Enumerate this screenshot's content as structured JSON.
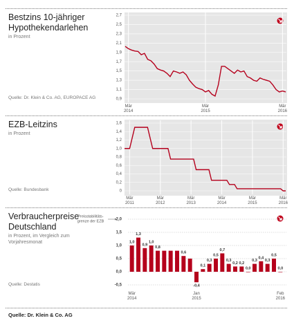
{
  "footer": "Quelle: Dr. Klein & Co. AG",
  "chart_data": [
    {
      "type": "line",
      "title": "Bestzins 10-jähriger Hypothekendarlehen",
      "subtitle": "in Prozent",
      "source": "Quelle: Dr. Klein & Co. AG, EUROPACE AG",
      "categories": [
        null,
        "Mär 2014",
        null,
        null,
        null,
        null,
        null,
        null,
        null,
        null,
        null,
        null,
        null,
        null,
        null,
        null,
        null,
        null,
        null,
        null,
        null,
        null,
        null,
        null,
        null,
        "Mär 2015",
        null,
        null,
        null,
        null,
        null,
        null,
        null,
        null,
        null,
        null,
        null,
        null,
        null,
        null,
        null,
        null,
        null,
        null,
        null,
        null,
        null,
        null,
        null,
        "Mär 2016",
        null
      ],
      "values": [
        2.03,
        1.98,
        1.95,
        1.93,
        1.92,
        1.85,
        1.88,
        1.75,
        1.72,
        1.65,
        1.55,
        1.52,
        1.5,
        1.45,
        1.38,
        1.5,
        1.48,
        1.45,
        1.48,
        1.42,
        1.3,
        1.22,
        1.15,
        1.12,
        1.1,
        1.05,
        1.08,
        1.0,
        0.96,
        1.2,
        1.6,
        1.6,
        1.55,
        1.5,
        1.45,
        1.52,
        1.48,
        1.5,
        1.38,
        1.35,
        1.3,
        1.28,
        1.35,
        1.32,
        1.3,
        1.28,
        1.2,
        1.1,
        1.05,
        1.07,
        1.05
      ],
      "color": "#b5001c",
      "ylim": [
        0.9,
        2.7
      ],
      "yticks": [
        {
          "value": 0.9,
          "label": "0,9"
        },
        {
          "value": 1.1,
          "label": "1,1"
        },
        {
          "value": 1.3,
          "label": "1,3"
        },
        {
          "value": 1.5,
          "label": "1,5"
        },
        {
          "value": 1.7,
          "label": "1,7"
        },
        {
          "value": 1.9,
          "label": "1,9"
        },
        {
          "value": 2.1,
          "label": "2,1"
        },
        {
          "value": 2.3,
          "label": "2,3"
        },
        {
          "value": 2.5,
          "label": "2,5"
        },
        {
          "value": 2.7,
          "label": "2,7"
        }
      ]
    },
    {
      "type": "line",
      "title": "EZB-Leitzins",
      "subtitle": "in Prozent",
      "source": "Quelle: Bundesbank",
      "categories": [
        null,
        null,
        "Mär 2011",
        null,
        null,
        null,
        null,
        null,
        null,
        null,
        null,
        null,
        null,
        null,
        "Mär 2012",
        null,
        null,
        null,
        null,
        null,
        null,
        null,
        null,
        null,
        null,
        null,
        "Mär 2013",
        null,
        null,
        null,
        null,
        null,
        null,
        null,
        null,
        null,
        null,
        null,
        "Mär 2014",
        null,
        null,
        null,
        null,
        null,
        null,
        null,
        null,
        null,
        null,
        null,
        "Mär 2015",
        null,
        null,
        null,
        null,
        null,
        null,
        null,
        null,
        null,
        null,
        null,
        "Mär 2016",
        null
      ],
      "values": [
        1.0,
        1.0,
        1.0,
        1.25,
        1.5,
        1.5,
        1.5,
        1.5,
        1.5,
        1.5,
        1.25,
        1.0,
        1.0,
        1.0,
        1.0,
        1.0,
        1.0,
        1.0,
        0.75,
        0.75,
        0.75,
        0.75,
        0.75,
        0.75,
        0.75,
        0.75,
        0.75,
        0.75,
        0.5,
        0.5,
        0.5,
        0.5,
        0.5,
        0.5,
        0.25,
        0.25,
        0.25,
        0.25,
        0.25,
        0.25,
        0.25,
        0.15,
        0.15,
        0.15,
        0.05,
        0.05,
        0.05,
        0.05,
        0.05,
        0.05,
        0.05,
        0.05,
        0.05,
        0.05,
        0.05,
        0.05,
        0.05,
        0.05,
        0.05,
        0.05,
        0.05,
        0.05,
        0.0,
        0.0
      ],
      "color": "#b5001c",
      "ylim": [
        0,
        1.6
      ],
      "yticks": [
        0,
        {
          "value": 0.2,
          "label": "0,2"
        },
        {
          "value": 0.4,
          "label": "0,4"
        },
        {
          "value": 0.6,
          "label": "0,6"
        },
        {
          "value": 0.8,
          "label": "0,8"
        },
        {
          "value": 1.0,
          "label": "1,0"
        },
        {
          "value": 1.2,
          "label": "1,2"
        },
        {
          "value": 1.4,
          "label": "1,4"
        },
        {
          "value": 1.6,
          "label": "1,6"
        }
      ]
    },
    {
      "type": "bar",
      "title": "Verbraucherpreise Deutschland",
      "subtitle": "in Prozent, im Vergleich zum Vorjahresmonat",
      "source": "Quelle: Destatis",
      "annotation": [
        "Preisstabilitäts-",
        "grenze der EZB"
      ],
      "categories": [
        "Mär 2014",
        null,
        null,
        null,
        null,
        null,
        null,
        null,
        null,
        null,
        "Jan 2015",
        null,
        null,
        null,
        null,
        null,
        null,
        null,
        null,
        null,
        null,
        null,
        null,
        "Feb 2016"
      ],
      "values": [
        1.0,
        1.3,
        0.9,
        1.0,
        0.8,
        0.8,
        0.8,
        0.8,
        0.6,
        0.5,
        -0.4,
        0.1,
        0.3,
        0.5,
        0.7,
        0.3,
        0.2,
        0.2,
        0.0,
        0.3,
        0.4,
        0.3,
        0.5,
        0.0
      ],
      "value_labels": [
        "1,0",
        "1,3",
        "0,9",
        "1,0",
        "0,8",
        null,
        null,
        null,
        "0,6",
        null,
        "-0,4",
        "0,1",
        "0,3",
        "0,5",
        "0,7",
        "0,3",
        "0,2",
        "0,2",
        "0,0",
        "0,3",
        "0,4",
        "0,3",
        "0,5",
        "0,0"
      ],
      "color": "#b5001c",
      "ylim": [
        -0.5,
        2.0
      ],
      "yticks": [
        {
          "value": -0.5,
          "label": "-0,5"
        },
        {
          "value": 0.0,
          "label": "0,0"
        },
        {
          "value": 0.5,
          "label": "0,5"
        },
        {
          "value": 1.0,
          "label": "1,0"
        },
        {
          "value": 1.5,
          "label": "1,5"
        },
        {
          "value": 2.0,
          "label": "2,0"
        }
      ]
    }
  ]
}
